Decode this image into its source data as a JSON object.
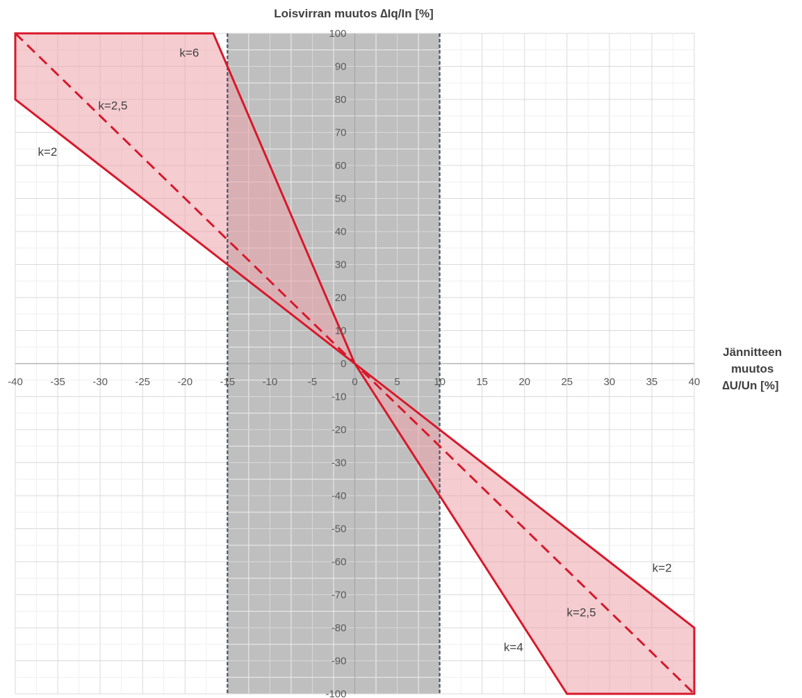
{
  "chart_data": {
    "type": "area",
    "title": "",
    "ylabel": "Loisvirran muutos ∆Iq/In [%]",
    "xlabel_lines": [
      "Jännitteen",
      "muutos",
      "∆U/Un  [%]"
    ],
    "xlim": [
      -40,
      40
    ],
    "ylim": [
      -100,
      100
    ],
    "x_ticks": [
      -40,
      -35,
      -30,
      -25,
      -20,
      -15,
      -10,
      -5,
      0,
      5,
      10,
      15,
      20,
      25,
      30,
      35,
      40
    ],
    "y_ticks": [
      100,
      90,
      80,
      70,
      60,
      50,
      40,
      30,
      20,
      10,
      0,
      -10,
      -20,
      -30,
      -40,
      -50,
      -60,
      -70,
      -80,
      -90,
      -100
    ],
    "grid": true,
    "legend": "none",
    "shaded_band": {
      "x_from": -15,
      "x_to": 10,
      "color": "#bfbfbf",
      "border_color": "#44546a"
    },
    "series": [
      {
        "name": "k=6",
        "values": [
          [
            -16.67,
            100
          ],
          [
            0,
            0
          ]
        ]
      },
      {
        "name": "k=4",
        "values": [
          [
            0,
            0
          ],
          [
            25,
            -100
          ]
        ]
      },
      {
        "name": "k=2",
        "values": [
          [
            -40,
            80
          ],
          [
            40,
            -80
          ]
        ]
      },
      {
        "name": "k=2,5",
        "dashed": true,
        "values": [
          [
            -40,
            100
          ],
          [
            40,
            -100
          ]
        ]
      }
    ],
    "region_upper": [
      [
        -40,
        100
      ],
      [
        -16.67,
        100
      ],
      [
        0,
        0
      ],
      [
        -40,
        80
      ]
    ],
    "region_lower": [
      [
        0,
        0
      ],
      [
        40,
        -80
      ],
      [
        40,
        -100
      ],
      [
        25,
        -100
      ]
    ],
    "annotations": [
      {
        "text": "k=6",
        "x": -19.5,
        "y": 93
      },
      {
        "text": "k=2,5",
        "x": -28.5,
        "y": 77
      },
      {
        "text": "k=2",
        "x": -36.2,
        "y": 63
      },
      {
        "text": "k=2",
        "x": 36.2,
        "y": -63
      },
      {
        "text": "k=2,5",
        "x": 26.7,
        "y": -76.5
      },
      {
        "text": "k=4",
        "x": 18.7,
        "y": -87
      }
    ],
    "colors": {
      "line": "#d7182a",
      "fill": "#eda3aa",
      "grid_major": "#d9d9d9",
      "grid_minor": "#efefef",
      "axis": "#a6a6a6",
      "tick": "#595959",
      "title": "#404040"
    }
  }
}
